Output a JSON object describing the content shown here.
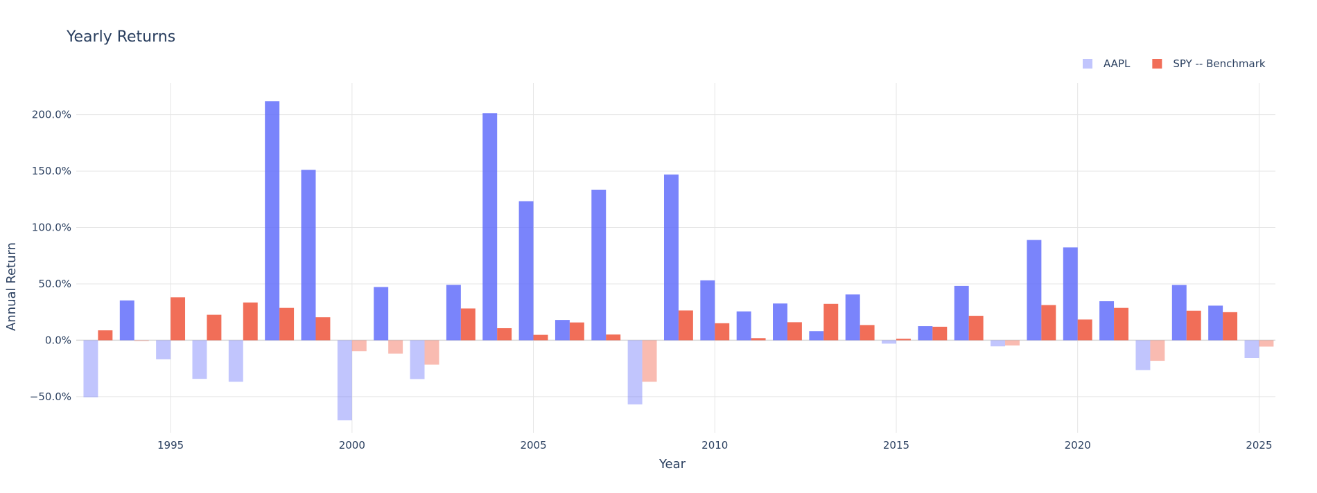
{
  "chart_data": {
    "type": "bar",
    "title": "Yearly Returns",
    "xlabel": "Year",
    "ylabel": "Annual Return",
    "x": [
      1993,
      1994,
      1995,
      1996,
      1997,
      1998,
      1999,
      2000,
      2001,
      2002,
      2003,
      2004,
      2005,
      2006,
      2007,
      2008,
      2009,
      2010,
      2011,
      2012,
      2013,
      2014,
      2015,
      2016,
      2017,
      2018,
      2019,
      2020,
      2021,
      2022,
      2023,
      2024,
      2025
    ],
    "series": [
      {
        "name": "AAPL",
        "color": "#636efa",
        "values": [
          -50.5,
          35.3,
          -16.9,
          -34.2,
          -36.8,
          211.9,
          151.1,
          -71.0,
          47.2,
          -34.4,
          49.1,
          201.4,
          123.3,
          18.0,
          133.5,
          -56.9,
          146.9,
          53.1,
          25.6,
          32.6,
          8.1,
          40.6,
          -3.0,
          12.5,
          48.2,
          -5.4,
          88.9,
          82.3,
          34.6,
          -26.4,
          49.0,
          30.7,
          -15.7
        ]
      },
      {
        "name": "SPY -- Benchmark",
        "color": "#ef553b",
        "values": [
          8.8,
          -0.6,
          38.1,
          22.6,
          33.5,
          28.7,
          20.4,
          -9.7,
          -11.8,
          -21.6,
          28.2,
          10.7,
          4.8,
          15.8,
          5.1,
          -36.8,
          26.4,
          15.1,
          1.9,
          16.0,
          32.3,
          13.5,
          1.3,
          12.0,
          21.7,
          -4.6,
          31.2,
          18.4,
          28.7,
          -18.2,
          26.2,
          24.9,
          -5.6
        ]
      }
    ],
    "xlim": [
      1992.4,
      2025.45
    ],
    "ylim": [
      -82,
      228
    ],
    "xticks": [
      1995,
      2000,
      2005,
      2010,
      2015,
      2020,
      2025
    ],
    "xtick_labels": [
      "1995",
      "2000",
      "2005",
      "2010",
      "2015",
      "2020",
      "2025"
    ],
    "yticks": [
      -50,
      0,
      50,
      100,
      150,
      200
    ],
    "ytick_labels": [
      "−50.0%",
      "0.0%",
      "50.0%",
      "100.0%",
      "150.0%",
      "200.0%"
    ],
    "negative_opacity": 0.4,
    "grid": true,
    "legend_position": "top-right"
  }
}
